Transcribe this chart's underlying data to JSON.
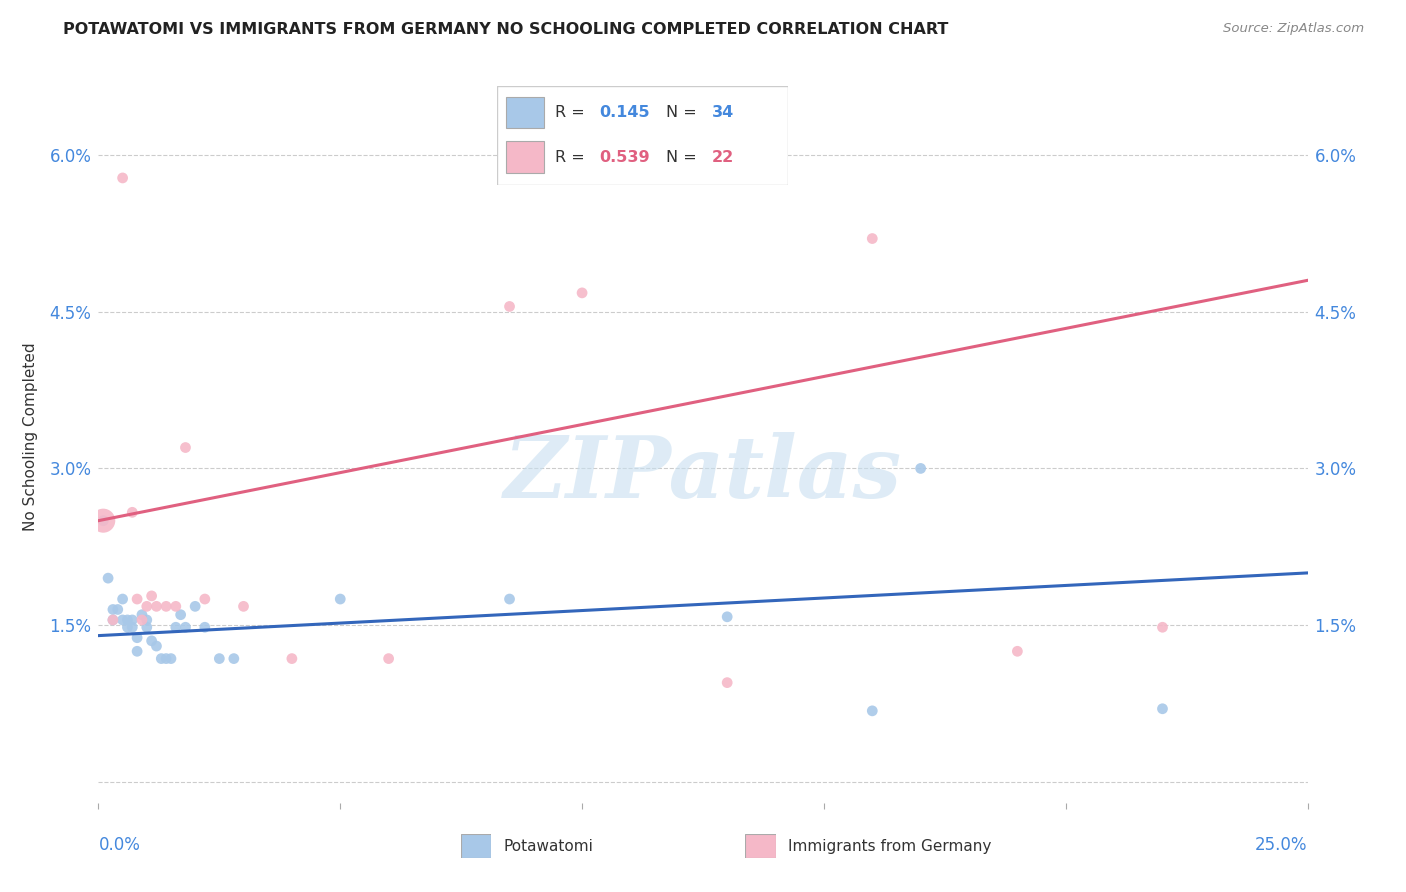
{
  "title": "POTAWATOMI VS IMMIGRANTS FROM GERMANY NO SCHOOLING COMPLETED CORRELATION CHART",
  "source": "Source: ZipAtlas.com",
  "ylabel": "No Schooling Completed",
  "yticks": [
    0.0,
    0.015,
    0.03,
    0.045,
    0.06
  ],
  "ytick_labels": [
    "",
    "1.5%",
    "3.0%",
    "4.5%",
    "6.0%"
  ],
  "xlim": [
    0.0,
    0.25
  ],
  "ylim": [
    -0.002,
    0.068
  ],
  "series1_name": "Potawatomi",
  "series1_R": 0.145,
  "series1_N": 34,
  "series1_color": "#a8c8e8",
  "series1_line_color": "#3366bb",
  "series2_name": "Immigrants from Germany",
  "series2_R": 0.539,
  "series2_N": 22,
  "series2_color": "#f5b8c8",
  "series2_line_color": "#e06080",
  "watermark": "ZIPatlas",
  "background_color": "#ffffff",
  "grid_color": "#cccccc",
  "blue_x": [
    0.001,
    0.002,
    0.003,
    0.003,
    0.004,
    0.005,
    0.005,
    0.006,
    0.006,
    0.007,
    0.007,
    0.008,
    0.008,
    0.009,
    0.01,
    0.01,
    0.011,
    0.012,
    0.013,
    0.014,
    0.015,
    0.016,
    0.017,
    0.018,
    0.02,
    0.022,
    0.025,
    0.028,
    0.05,
    0.085,
    0.13,
    0.16,
    0.17,
    0.22
  ],
  "blue_y": [
    0.025,
    0.0195,
    0.0165,
    0.0155,
    0.0165,
    0.0155,
    0.0175,
    0.0155,
    0.0148,
    0.0155,
    0.0148,
    0.0138,
    0.0125,
    0.016,
    0.0155,
    0.0148,
    0.0135,
    0.013,
    0.0118,
    0.0118,
    0.0118,
    0.0148,
    0.016,
    0.0148,
    0.0168,
    0.0148,
    0.0118,
    0.0118,
    0.0175,
    0.0175,
    0.0158,
    0.0068,
    0.03,
    0.007
  ],
  "blue_sizes": [
    60,
    60,
    60,
    60,
    60,
    60,
    60,
    60,
    60,
    60,
    60,
    60,
    60,
    60,
    60,
    60,
    60,
    60,
    60,
    60,
    60,
    60,
    60,
    60,
    60,
    60,
    60,
    60,
    60,
    60,
    60,
    60,
    60,
    60
  ],
  "pink_x": [
    0.001,
    0.003,
    0.005,
    0.007,
    0.008,
    0.009,
    0.01,
    0.011,
    0.012,
    0.014,
    0.016,
    0.018,
    0.022,
    0.03,
    0.04,
    0.06,
    0.085,
    0.1,
    0.13,
    0.16,
    0.19,
    0.22
  ],
  "pink_y": [
    0.025,
    0.0155,
    0.0578,
    0.0258,
    0.0175,
    0.0155,
    0.0168,
    0.0178,
    0.0168,
    0.0168,
    0.0168,
    0.032,
    0.0175,
    0.0168,
    0.0118,
    0.0118,
    0.0455,
    0.0468,
    0.0095,
    0.052,
    0.0125,
    0.0148
  ],
  "pink_sizes": [
    300,
    60,
    60,
    60,
    60,
    60,
    60,
    60,
    60,
    60,
    60,
    60,
    60,
    60,
    60,
    60,
    60,
    60,
    60,
    60,
    60,
    60
  ],
  "blue_line_x": [
    0.0,
    0.25
  ],
  "blue_line_y": [
    0.014,
    0.02
  ],
  "pink_line_x": [
    0.0,
    0.25
  ],
  "pink_line_y": [
    0.025,
    0.048
  ]
}
